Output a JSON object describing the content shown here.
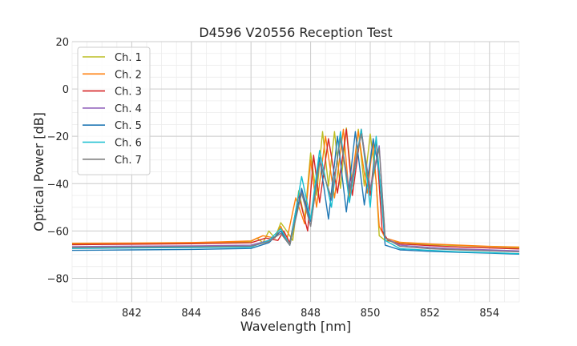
{
  "chart_data": {
    "type": "line",
    "title": "D4596 V20556 Reception Test",
    "xlabel": "Wavelength [nm]",
    "ylabel": "Optical Power [dB]",
    "xlim": [
      840,
      855
    ],
    "ylim": [
      -90,
      20
    ],
    "xticks": [
      842,
      844,
      846,
      848,
      850,
      852,
      854
    ],
    "yticks": [
      20,
      0,
      -20,
      -40,
      -60,
      -80
    ],
    "x_minor_step": 0.5,
    "y_minor_step": 5,
    "grid": true,
    "legend_position": "top-left",
    "series": [
      {
        "name": "Ch. 1",
        "color": "#bcbd22",
        "x": [
          840,
          842,
          844,
          845,
          846,
          846.2,
          846.4,
          846.6,
          846.8,
          847.0,
          847.2,
          847.4,
          847.6,
          847.8,
          848.0,
          848.2,
          848.4,
          848.6,
          848.8,
          849.0,
          849.2,
          849.4,
          849.6,
          849.8,
          850.0,
          850.2,
          850.3,
          850.5,
          851,
          852,
          853,
          854,
          855
        ],
        "y": [
          -65.5,
          -65.4,
          -65.3,
          -65.0,
          -64.5,
          -63,
          -65,
          -60,
          -63,
          -56.5,
          -60,
          -64,
          -43,
          -55,
          -27,
          -45,
          -18,
          -41,
          -18,
          -42,
          -16.5,
          -41,
          -17,
          -41,
          -19,
          -39,
          -62,
          -64,
          -65,
          -65.8,
          -66.2,
          -66.6,
          -67.2
        ]
      },
      {
        "name": "Ch. 2",
        "color": "#ff7f0e",
        "x": [
          840,
          842,
          844,
          845,
          846,
          846.4,
          846.8,
          847.0,
          847.2,
          847.5,
          847.8,
          848.0,
          848.2,
          848.5,
          848.8,
          849.1,
          849.3,
          849.6,
          849.9,
          850.1,
          850.3,
          850.5,
          851,
          852,
          853,
          854,
          855
        ],
        "y": [
          -65.2,
          -65.1,
          -64.9,
          -64.6,
          -64.2,
          -62,
          -63,
          -58,
          -64,
          -46,
          -57,
          -30,
          -50,
          -20,
          -46,
          -17,
          -46,
          -18,
          -44,
          -22,
          -58,
          -63,
          -64.8,
          -65.5,
          -66,
          -66.5,
          -66.8
        ]
      },
      {
        "name": "Ch. 3",
        "color": "#d62728",
        "x": [
          840,
          842,
          844,
          845,
          846,
          846.5,
          846.9,
          847.1,
          847.3,
          847.6,
          847.9,
          848.1,
          848.3,
          848.6,
          848.9,
          849.2,
          849.4,
          849.7,
          850.0,
          850.2,
          850.4,
          850.6,
          851,
          852,
          853,
          854,
          855
        ],
        "y": [
          -65.8,
          -65.6,
          -65.4,
          -65.2,
          -65.0,
          -63,
          -64,
          -60,
          -65,
          -45,
          -60,
          -28,
          -48,
          -21,
          -44,
          -17,
          -45,
          -17,
          -45,
          -21,
          -60,
          -64,
          -65.5,
          -66.2,
          -66.8,
          -67.2,
          -67.6
        ]
      },
      {
        "name": "Ch. 4",
        "color": "#9467bd",
        "x": [
          840,
          842,
          844,
          846,
          846.6,
          847.0,
          847.3,
          847.7,
          848.0,
          848.3,
          848.7,
          849.0,
          849.3,
          849.7,
          850.0,
          850.3,
          850.5,
          851,
          852,
          853,
          854,
          855
        ],
        "y": [
          -66.6,
          -66.4,
          -66.3,
          -66.0,
          -64,
          -61,
          -66,
          -43,
          -58,
          -30,
          -47,
          -20,
          -43,
          -18,
          -42,
          -24,
          -63,
          -66,
          -67,
          -67.6,
          -68,
          -68.4
        ]
      },
      {
        "name": "Ch. 5",
        "color": "#1f77b4",
        "x": [
          840,
          842,
          844,
          846,
          846.6,
          847.0,
          847.3,
          847.7,
          848.0,
          848.3,
          848.6,
          848.9,
          849.2,
          849.5,
          849.8,
          850.1,
          850.3,
          850.5,
          851,
          852,
          853,
          854,
          855
        ],
        "y": [
          -68.2,
          -68.0,
          -67.8,
          -67.4,
          -65,
          -60,
          -66,
          -42,
          -56,
          -29,
          -55,
          -20,
          -52,
          -18,
          -49,
          -21,
          -35,
          -66,
          -68,
          -68.6,
          -69,
          -69.4,
          -69.8
        ]
      },
      {
        "name": "Ch. 6",
        "color": "#17becf",
        "x": [
          840,
          842,
          844,
          846,
          846.6,
          847.0,
          847.3,
          847.7,
          848.0,
          848.3,
          848.7,
          849.0,
          849.3,
          849.7,
          850.0,
          850.2,
          850.5,
          851,
          852,
          853,
          854,
          855
        ],
        "y": [
          -67.4,
          -67.2,
          -67.0,
          -66.8,
          -64,
          -59,
          -66,
          -37,
          -55,
          -26,
          -50,
          -18,
          -48,
          -17,
          -50,
          -20,
          -64,
          -67.5,
          -68.2,
          -68.8,
          -69.2,
          -69.6
        ]
      },
      {
        "name": "Ch. 7",
        "color": "#7f7f7f",
        "x": [
          840,
          842,
          844,
          846,
          846.6,
          847.0,
          847.3,
          847.7,
          848.0,
          848.3,
          848.7,
          849.0,
          849.3,
          849.7,
          850.0,
          850.3,
          850.5,
          851,
          852,
          853,
          854,
          855
        ],
        "y": [
          -67.0,
          -66.8,
          -66.6,
          -66.4,
          -64.5,
          -61,
          -66,
          -44,
          -58,
          -31,
          -46,
          -21,
          -44,
          -19,
          -43,
          -25,
          -63,
          -66.5,
          -67.5,
          -68,
          -68.4,
          -68.8
        ]
      }
    ]
  }
}
